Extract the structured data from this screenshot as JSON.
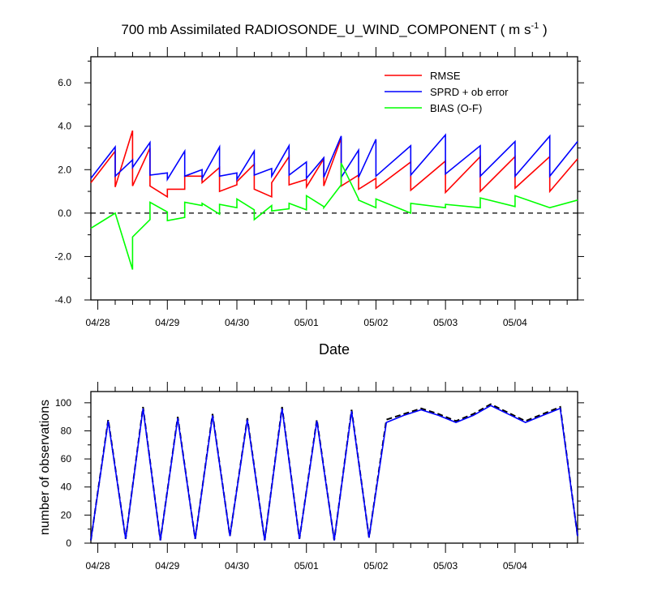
{
  "title": "700 mb Assimilated RADIOSONDE_U_WIND_COMPONENT ( m s",
  "title_sup": "-1",
  "title_close": " )",
  "chart_data": [
    {
      "type": "line",
      "xlabel": "Date",
      "ylabel": "",
      "ylim": [
        -4,
        7.2
      ],
      "yticks": [
        -4,
        -2,
        0,
        2,
        4,
        6
      ],
      "ytick_labels": [
        "-4.0",
        "-2.0",
        "0.0",
        "2.0",
        "4.0",
        "6.0"
      ],
      "xlim": [
        -0.1,
        6.9
      ],
      "xticks": [
        0,
        1,
        2,
        3,
        4,
        5,
        6
      ],
      "xtick_labels": [
        "04/28",
        "04/29",
        "04/30",
        "05/01",
        "05/02",
        "05/03",
        "05/04"
      ],
      "zero_line": "dashed",
      "legend_position": "top-right",
      "series": [
        {
          "name": "RMSE",
          "color": "#ff0000",
          "x": [
            -0.1,
            0.25,
            0.25,
            0.5,
            0.5,
            0.75,
            0.75,
            1.0,
            1.0,
            1.25,
            1.25,
            1.5,
            1.5,
            1.75,
            1.75,
            2.0,
            2.0,
            2.25,
            2.25,
            2.5,
            2.5,
            2.75,
            2.75,
            3.0,
            3.0,
            3.25,
            3.25,
            3.5,
            3.5,
            3.75,
            3.75,
            4.0,
            4.0,
            4.5,
            4.5,
            5.0,
            5.0,
            5.5,
            5.5,
            6.0,
            6.0,
            6.5,
            6.5,
            6.9
          ],
          "y": [
            1.4,
            2.85,
            1.2,
            3.8,
            1.25,
            3.0,
            1.25,
            0.75,
            1.1,
            1.1,
            1.7,
            1.7,
            1.4,
            2.1,
            1.0,
            1.3,
            1.45,
            2.25,
            1.1,
            0.75,
            1.4,
            2.6,
            1.3,
            1.55,
            1.2,
            2.5,
            1.25,
            3.45,
            1.25,
            1.75,
            1.1,
            1.6,
            1.15,
            2.35,
            1.05,
            2.4,
            0.95,
            2.6,
            1.0,
            2.6,
            1.15,
            2.6,
            1.0,
            2.5
          ]
        },
        {
          "name": "SPRD + ob error",
          "color": "#0000ff",
          "x": [
            -0.1,
            0.25,
            0.25,
            0.5,
            0.5,
            0.75,
            0.75,
            1.0,
            1.0,
            1.25,
            1.25,
            1.5,
            1.5,
            1.75,
            1.75,
            2.0,
            2.0,
            2.25,
            2.25,
            2.5,
            2.5,
            2.75,
            2.75,
            3.0,
            3.0,
            3.25,
            3.25,
            3.5,
            3.5,
            3.75,
            3.75,
            4.0,
            4.0,
            4.5,
            4.5,
            5.0,
            5.0,
            5.5,
            5.5,
            6.0,
            6.0,
            6.5,
            6.5,
            6.9
          ],
          "y": [
            1.6,
            3.05,
            1.7,
            2.45,
            2.1,
            3.25,
            1.75,
            1.85,
            1.55,
            2.85,
            1.7,
            2.0,
            1.6,
            3.05,
            1.7,
            1.85,
            1.55,
            2.85,
            1.75,
            2.05,
            1.7,
            3.1,
            1.75,
            2.35,
            1.6,
            2.55,
            1.65,
            3.55,
            1.65,
            2.9,
            1.65,
            3.4,
            1.7,
            3.1,
            1.75,
            3.6,
            1.8,
            3.1,
            1.7,
            3.3,
            1.7,
            3.55,
            1.7,
            3.3
          ]
        },
        {
          "name": "BIAS (O-F)",
          "color": "#00ff00",
          "x": [
            -0.1,
            0.25,
            0.5,
            0.5,
            0.75,
            0.75,
            1.0,
            1.0,
            1.25,
            1.25,
            1.5,
            1.5,
            1.75,
            1.75,
            2.0,
            2.0,
            2.25,
            2.25,
            2.5,
            2.5,
            2.75,
            2.75,
            3.0,
            3.0,
            3.25,
            3.25,
            3.5,
            3.5,
            3.75,
            3.75,
            4.0,
            4.0,
            4.5,
            4.5,
            5.0,
            5.0,
            5.5,
            5.5,
            6.0,
            6.0,
            6.5,
            6.9
          ],
          "y": [
            -0.7,
            0.0,
            -2.6,
            -1.1,
            -0.3,
            0.5,
            0.05,
            -0.35,
            -0.2,
            0.5,
            0.35,
            0.45,
            -0.05,
            0.4,
            0.25,
            0.65,
            0.15,
            -0.3,
            0.35,
            0.1,
            0.2,
            0.45,
            0.15,
            0.8,
            0.3,
            0.25,
            1.3,
            2.3,
            0.65,
            0.6,
            0.25,
            0.65,
            0.0,
            0.45,
            0.25,
            0.4,
            0.25,
            0.7,
            0.3,
            0.8,
            0.25,
            0.6
          ]
        }
      ]
    },
    {
      "type": "line",
      "xlabel": "",
      "ylabel": "number of observations",
      "ylim": [
        0,
        108
      ],
      "yticks": [
        0,
        20,
        40,
        60,
        80,
        100
      ],
      "ytick_labels": [
        "0",
        "20",
        "40",
        "60",
        "80",
        "100"
      ],
      "xlim": [
        -0.1,
        6.9
      ],
      "xticks": [
        0,
        1,
        2,
        3,
        4,
        5,
        6
      ],
      "xtick_labels": [
        "04/28",
        "04/29",
        "04/30",
        "05/01",
        "05/02",
        "05/03",
        "05/04"
      ],
      "series": [
        {
          "color": "#000000",
          "dashed": true,
          "x": [
            -0.1,
            0.15,
            0.4,
            0.65,
            0.9,
            1.15,
            1.4,
            1.65,
            1.9,
            2.15,
            2.4,
            2.65,
            2.9,
            3.15,
            3.4,
            3.65,
            3.9,
            4.15,
            4.4,
            4.65,
            4.9,
            5.15,
            5.4,
            5.65,
            5.9,
            6.15,
            6.4,
            6.65,
            6.9
          ],
          "y": [
            2,
            88,
            3,
            97,
            2,
            90,
            3,
            92,
            5,
            89,
            2,
            97,
            3,
            88,
            2,
            95,
            4,
            88,
            92,
            96,
            92,
            87,
            92,
            99,
            93,
            87,
            92,
            97,
            5
          ]
        },
        {
          "color": "#0000ff",
          "x": [
            -0.1,
            0.15,
            0.4,
            0.65,
            0.9,
            1.15,
            1.4,
            1.65,
            1.9,
            2.15,
            2.4,
            2.65,
            2.9,
            3.15,
            3.4,
            3.65,
            3.9,
            4.15,
            4.4,
            4.65,
            4.9,
            5.15,
            5.4,
            5.65,
            5.9,
            6.15,
            6.4,
            6.65,
            6.9
          ],
          "y": [
            2,
            87,
            3,
            96,
            2,
            89,
            3,
            91,
            5,
            88,
            2,
            96,
            3,
            87,
            2,
            94,
            4,
            86,
            91,
            95,
            91,
            86,
            91,
            98,
            92,
            86,
            91,
            96,
            5
          ]
        }
      ]
    }
  ]
}
